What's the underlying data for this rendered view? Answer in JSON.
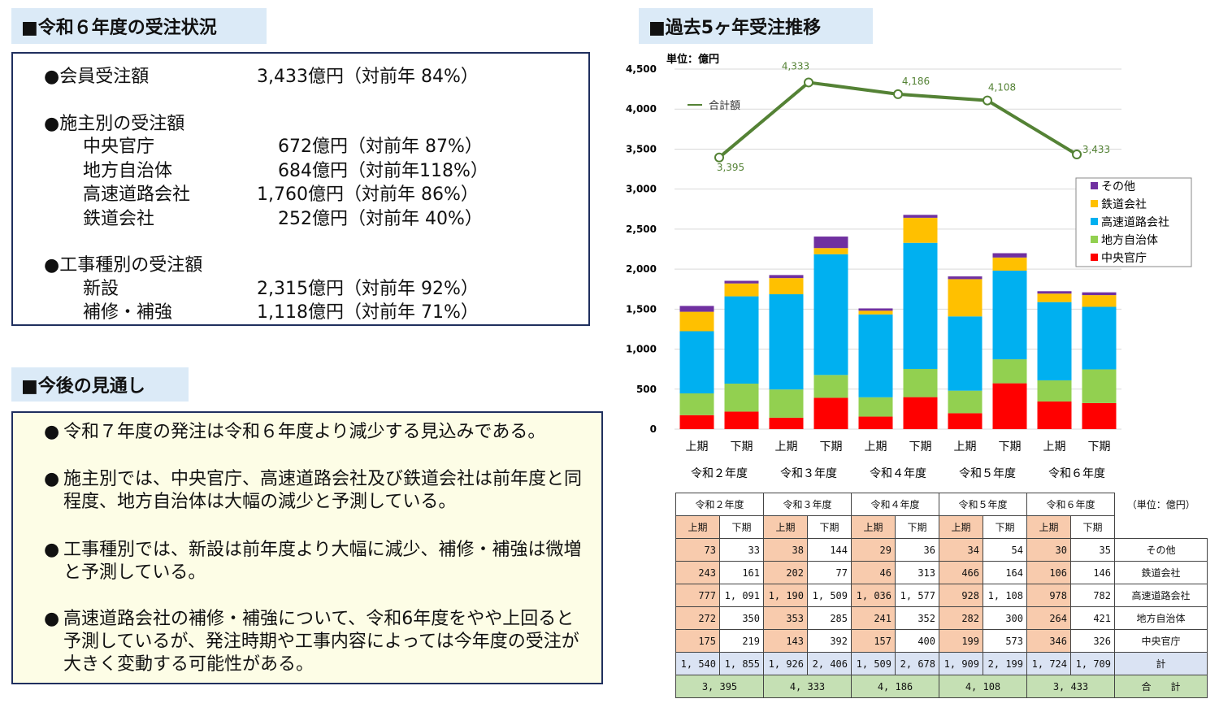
{
  "section1": {
    "title": "■令和６年度の受注状況",
    "member_label": "●会員受注額",
    "member_value": "3,433億円（対前年  84%）",
    "client_heading": "●施主別の受注額",
    "client_rows": [
      {
        "label": "中央官庁",
        "value": "672億円（対前年  87%）"
      },
      {
        "label": "地方自治体",
        "value": "684億円（対前年118%）"
      },
      {
        "label": "高速道路会社",
        "value": "1,760億円（対前年  86%）"
      },
      {
        "label": "鉄道会社",
        "value": "252億円（対前年  40%）"
      }
    ],
    "work_heading": "●工事種別の受注額",
    "work_rows": [
      {
        "label": "新設",
        "value": "2,315億円（対前年  92%）"
      },
      {
        "label": "補修・補強",
        "value": "1,118億円（対前年  71%）"
      }
    ]
  },
  "section2": {
    "title": "■今後の見通し",
    "bullet": "●",
    "paragraphs": [
      "令和７年度の発注は令和６年度より減少する見込みである。",
      "施主別では、中央官庁、高速道路会社及び鉄道会社は前年度と同程度、地方自治体は大幅の減少と予測している。",
      "工事種別では、新設は前年度より大幅に減少、補修・補強は微増と予測している。",
      "高速道路会社の補修・補強について、令和6年度をやや上回ると予測しているが、発注時期や工事内容によっては今年度の受注が大きく変動する可能性がある。"
    ]
  },
  "section3": {
    "title": "■過去5ヶ年受注推移",
    "unit": "単位：億円"
  },
  "chart_data": {
    "type": "bar",
    "stacked": true,
    "ylim": [
      0,
      4500
    ],
    "yticks": [
      "0",
      "500",
      "1,000",
      "1,500",
      "2,000",
      "2,500",
      "3,000",
      "3,500",
      "4,000",
      "4,500"
    ],
    "categories": [
      "上期",
      "下期",
      "上期",
      "下期",
      "上期",
      "下期",
      "上期",
      "下期",
      "上期",
      "下期"
    ],
    "groups": [
      "令和２年度",
      "令和３年度",
      "令和４年度",
      "令和５年度",
      "令和６年度"
    ],
    "grid": true,
    "legend_position": "right",
    "series": [
      {
        "name": "中央官庁",
        "color": "#ff0000",
        "values": [
          175,
          219,
          143,
          392,
          157,
          400,
          199,
          573,
          346,
          326
        ]
      },
      {
        "name": "地方自治体",
        "color": "#92d050",
        "values": [
          272,
          350,
          353,
          285,
          241,
          352,
          282,
          300,
          264,
          421
        ]
      },
      {
        "name": "高速道路会社",
        "color": "#00b0f0",
        "values": [
          777,
          1091,
          1190,
          1509,
          1036,
          1577,
          928,
          1108,
          978,
          782
        ]
      },
      {
        "name": "鉄道会社",
        "color": "#ffc000",
        "values": [
          243,
          161,
          202,
          77,
          46,
          313,
          466,
          164,
          106,
          146
        ]
      },
      {
        "name": "その他",
        "color": "#7030a0",
        "values": [
          73,
          33,
          38,
          144,
          29,
          36,
          34,
          54,
          30,
          35
        ]
      }
    ],
    "line": {
      "name": "合計額",
      "color": "#548235",
      "values": [
        3395,
        4333,
        4186,
        4108,
        3433
      ],
      "labels": [
        "3,395",
        "4,333",
        "4,186",
        "4,108",
        "3,433"
      ]
    }
  },
  "table": {
    "years": [
      "令和２年度",
      "令和３年度",
      "令和４年度",
      "令和５年度",
      "令和６年度"
    ],
    "unit": "（単位：億円）",
    "half_labels": [
      "上期",
      "下期"
    ],
    "rows": [
      {
        "label": "その他",
        "values": [
          "73",
          "33",
          "38",
          "144",
          "29",
          "36",
          "34",
          "54",
          "30",
          "35"
        ]
      },
      {
        "label": "鉄道会社",
        "values": [
          "243",
          "161",
          "202",
          "77",
          "46",
          "313",
          "466",
          "164",
          "106",
          "146"
        ]
      },
      {
        "label": "高速道路会社",
        "values": [
          "777",
          "1, 091",
          "1, 190",
          "1, 509",
          "1, 036",
          "1, 577",
          "928",
          "1, 108",
          "978",
          "782"
        ]
      },
      {
        "label": "地方自治体",
        "values": [
          "272",
          "350",
          "353",
          "285",
          "241",
          "352",
          "282",
          "300",
          "264",
          "421"
        ]
      },
      {
        "label": "中央官庁",
        "values": [
          "175",
          "219",
          "143",
          "392",
          "157",
          "400",
          "199",
          "573",
          "346",
          "326"
        ]
      }
    ],
    "subtotal": {
      "label": "計",
      "values": [
        "1, 540",
        "1, 855",
        "1, 926",
        "2, 406",
        "1, 509",
        "2, 678",
        "1, 909",
        "2, 199",
        "1, 724",
        "1, 709"
      ]
    },
    "grand_total": {
      "label": "合　　計",
      "values": [
        "3, 395",
        "4, 333",
        "4, 186",
        "4, 108",
        "3, 433"
      ]
    }
  }
}
